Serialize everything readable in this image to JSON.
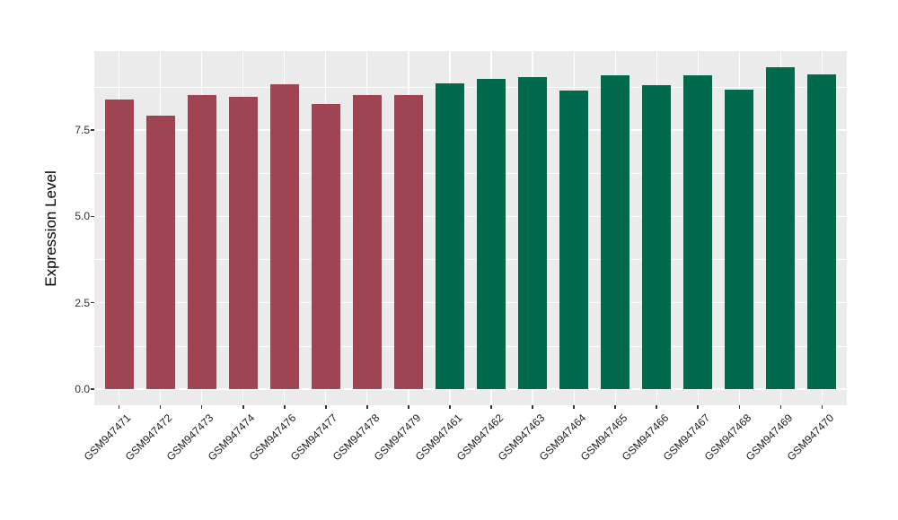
{
  "figure": {
    "kind": "ggplot-style bar chart of gene expression per GEO sample",
    "background_color": "#ffffff"
  },
  "panel": {
    "background_color": "#EBEBEB",
    "grid_color": "#FFFFFF",
    "tick_color": "#333333"
  },
  "y_axis": {
    "title": "Expression Level",
    "tick_labels": [
      "0.0",
      "2.5",
      "5.0",
      "7.5"
    ],
    "tick_values": [
      0.0,
      2.5,
      5.0,
      7.5
    ],
    "minor_values": [
      1.25,
      3.75,
      6.25,
      8.75
    ]
  },
  "chart_data": {
    "type": "bar",
    "title": "",
    "xlabel": "",
    "ylabel": "Expression Level",
    "categories": [
      "GSM947471",
      "GSM947472",
      "GSM947473",
      "GSM947474",
      "GSM947476",
      "GSM947477",
      "GSM947478",
      "GSM947479",
      "GSM947461",
      "GSM947462",
      "GSM947463",
      "GSM947464",
      "GSM947465",
      "GSM947466",
      "GSM947467",
      "GSM947468",
      "GSM947469",
      "GSM947470"
    ],
    "values": [
      8.39,
      7.92,
      8.52,
      8.45,
      8.83,
      8.25,
      8.52,
      8.52,
      8.84,
      8.97,
      9.04,
      8.64,
      9.09,
      8.8,
      9.09,
      8.66,
      9.32,
      9.1
    ],
    "group_index": [
      0,
      0,
      0,
      0,
      0,
      0,
      0,
      0,
      1,
      1,
      1,
      1,
      1,
      1,
      1,
      1,
      1,
      1
    ],
    "group_colors": [
      "#9E4452",
      "#016A4D"
    ],
    "group_names": [
      "group-red",
      "group-green"
    ],
    "yticks": [
      0.0,
      2.5,
      5.0,
      7.5
    ],
    "ytick_labels": [
      "0.0",
      "2.5",
      "5.0",
      "7.5"
    ],
    "yticks_minor": [
      1.25,
      3.75,
      6.25,
      8.75
    ],
    "ylim": [
      -0.466,
      9.786
    ],
    "grid": true,
    "legend_position": "none",
    "x_label_angle_deg": 45
  }
}
